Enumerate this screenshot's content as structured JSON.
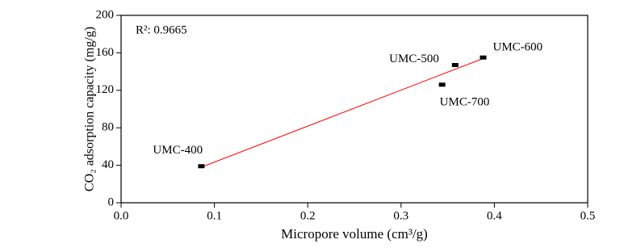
{
  "chart_data": {
    "type": "scatter",
    "xlabel": "Micropore volume (cm³/g)",
    "ylabel": "CO₂ adsorption capacity (mg/g)",
    "annotation": "R²: 0.9665",
    "labels": [
      "UMC-400",
      "UMC-500",
      "UMC-600",
      "UMC-700"
    ],
    "x": [
      0.086,
      0.358,
      0.388,
      0.344
    ],
    "values": [
      39,
      147,
      155,
      126
    ],
    "color": "#000000",
    "fit_line": {
      "x": [
        0.086,
        0.388
      ],
      "values": [
        38,
        154
      ],
      "color": "#ff0000"
    },
    "xlim": [
      0,
      0.5
    ],
    "xticks": [
      {
        "value": 0,
        "label": "0.0"
      },
      0.1,
      0.2,
      0.3,
      0.4,
      0.5
    ],
    "ylim": [
      0,
      200
    ],
    "yticks": [
      0,
      40,
      80,
      120,
      160,
      200
    ]
  }
}
